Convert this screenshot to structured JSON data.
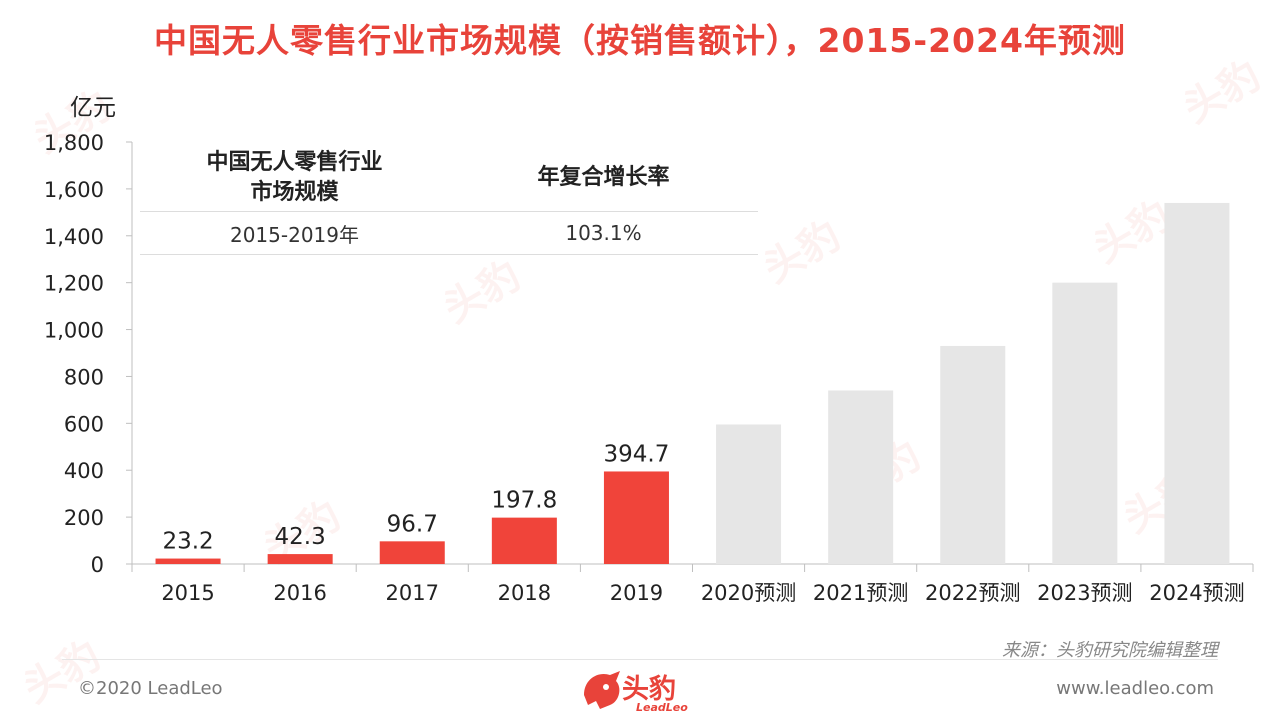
{
  "header": {
    "title": "中国无人零售行业市场规模（按销售额计），2015-2024年预测",
    "unit": "亿元"
  },
  "summary_table": {
    "col1_header": "中国无人零售行业\n市场规模",
    "col2_header": "年复合增长率",
    "period": "2015-2019年",
    "cagr": "103.1%"
  },
  "footer": {
    "source": "来源：头豹研究院编辑整理",
    "copyright": "©2020 LeadLeo",
    "website": "www.leadleo.com",
    "logo_text": "头豹",
    "logo_subtext": "LeadLeo"
  },
  "colors": {
    "title": "#e8433a",
    "actual_bar": "#f0443a",
    "forecast_bar": "#e6e6e6"
  },
  "chart_data": {
    "type": "bar",
    "ylabel": "亿元",
    "ylim": [
      0,
      1800
    ],
    "yticks": [
      0,
      200,
      400,
      600,
      800,
      1000,
      1200,
      1400,
      1600,
      1800
    ],
    "ytick_labels": [
      "0",
      "200",
      "400",
      "600",
      "800",
      "1,000",
      "1,200",
      "1,400",
      "1,600",
      "1,800"
    ],
    "categories": [
      "2015",
      "2016",
      "2017",
      "2018",
      "2019",
      "2020预测",
      "2021预测",
      "2022预测",
      "2023预测",
      "2024预测"
    ],
    "values": [
      23.2,
      42.3,
      96.7,
      197.8,
      394.7,
      595,
      740,
      930,
      1200,
      1540
    ],
    "value_labels": [
      "23.2",
      "42.3",
      "96.7",
      "197.8",
      "394.7",
      "",
      "",
      "",
      "",
      ""
    ],
    "forecast": [
      false,
      false,
      false,
      false,
      false,
      true,
      true,
      true,
      true,
      true
    ],
    "grid": false,
    "legend": "none"
  }
}
